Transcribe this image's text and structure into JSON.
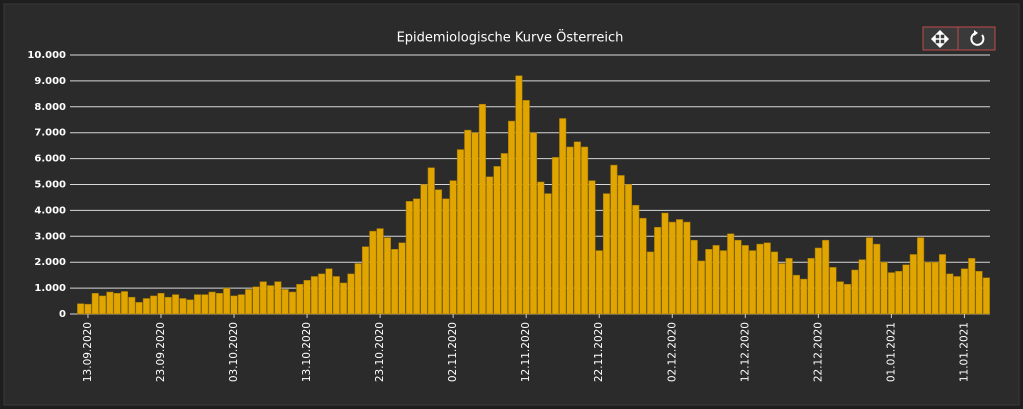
{
  "chart_data": {
    "type": "bar",
    "title": "Epidemiologische Kurve Österreich",
    "color": "#e0a500",
    "grid": true,
    "categories": [
      null,
      "13.09.2020",
      null,
      null,
      null,
      null,
      null,
      null,
      null,
      null,
      null,
      "23.09.2020",
      null,
      null,
      null,
      null,
      null,
      null,
      null,
      null,
      null,
      "03.10.2020",
      null,
      null,
      null,
      null,
      null,
      null,
      null,
      null,
      null,
      "13.10.2020",
      null,
      null,
      null,
      null,
      null,
      null,
      null,
      null,
      null,
      "23.10.2020",
      null,
      null,
      null,
      null,
      null,
      null,
      null,
      null,
      null,
      "02.11.2020",
      null,
      null,
      null,
      null,
      null,
      null,
      null,
      null,
      null,
      "12.11.2020",
      null,
      null,
      null,
      null,
      null,
      null,
      null,
      null,
      null,
      "22.11.2020",
      null,
      null,
      null,
      null,
      null,
      null,
      null,
      null,
      null,
      "02.12.2020",
      null,
      null,
      null,
      null,
      null,
      null,
      null,
      null,
      null,
      "12.12.2020",
      null,
      null,
      null,
      null,
      null,
      null,
      null,
      null,
      null,
      "22.12.2020",
      null,
      null,
      null,
      null,
      null,
      null,
      null,
      null,
      null,
      "01.01.2021",
      null,
      null,
      null,
      null,
      null,
      null,
      null,
      null,
      null,
      "11.01.2021",
      null,
      null,
      null
    ],
    "values": [
      400,
      380,
      800,
      700,
      850,
      800,
      870,
      650,
      450,
      600,
      700,
      800,
      650,
      750,
      600,
      550,
      750,
      750,
      850,
      800,
      1000,
      700,
      750,
      950,
      1050,
      1250,
      1100,
      1250,
      950,
      850,
      1150,
      1300,
      1450,
      1550,
      1750,
      1450,
      1200,
      1550,
      1950,
      2600,
      3200,
      3300,
      2950,
      2500,
      2750,
      4350,
      4450,
      5000,
      5650,
      4800,
      4450,
      5150,
      6350,
      7100,
      7000,
      8100,
      5300,
      5700,
      6200,
      7450,
      9200,
      8250,
      7000,
      5100,
      4650,
      6050,
      7550,
      6450,
      6650,
      6450,
      5150,
      2450,
      4650,
      5750,
      5350,
      5000,
      4200,
      3700,
      2400,
      3350,
      3900,
      3550,
      3650,
      3550,
      2850,
      2050,
      2500,
      2650,
      2450,
      3100,
      2850,
      2650,
      2450,
      2700,
      2750,
      2400,
      1950,
      2150,
      1500,
      1350,
      2150,
      2550,
      2850,
      1800,
      1250,
      1150,
      1700,
      2100,
      2950,
      2700,
      2000,
      1600,
      1650,
      1900,
      2300,
      2950,
      2000,
      2000,
      2300,
      1550,
      1450,
      1750,
      2150,
      1650,
      1400
    ],
    "ylim": [
      0,
      10000
    ],
    "yticks": [
      0,
      {
        "value": 1000,
        "label": "1.000"
      },
      {
        "value": 2000,
        "label": "2.000"
      },
      {
        "value": 3000,
        "label": "3.000"
      },
      {
        "value": 4000,
        "label": "4.000"
      },
      {
        "value": 5000,
        "label": "5.000"
      },
      {
        "value": 6000,
        "label": "6.000"
      },
      {
        "value": 7000,
        "label": "7.000"
      },
      {
        "value": 8000,
        "label": "8.000"
      },
      {
        "value": 9000,
        "label": "9.000"
      },
      {
        "value": 10000,
        "label": "10.000"
      }
    ]
  }
}
